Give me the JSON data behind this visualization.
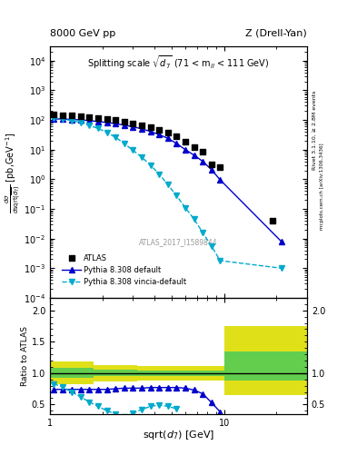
{
  "title_left": "8000 GeV pp",
  "title_right": "Z (Drell-Yan)",
  "right_label1": "Rivet 3.1.10, ≥ 2.8M events",
  "right_label2": "mcplots.cern.ch [arXiv:1306.3436]",
  "ref_label": "ATLAS_2017_I1589844",
  "atlas_x": [
    1.05,
    1.18,
    1.33,
    1.5,
    1.68,
    1.89,
    2.12,
    2.38,
    2.67,
    3.0,
    3.37,
    3.78,
    4.24,
    4.76,
    5.34,
    5.99,
    6.73,
    7.55,
    8.48,
    9.51,
    19.02
  ],
  "atlas_y": [
    150,
    145,
    140,
    135,
    128,
    118,
    108,
    100,
    88,
    78,
    68,
    58,
    47,
    37,
    28,
    18,
    12,
    8.5,
    3.2,
    2.5,
    0.04
  ],
  "pythia_default_x": [
    1.05,
    1.18,
    1.33,
    1.5,
    1.68,
    1.89,
    2.12,
    2.38,
    2.67,
    3.0,
    3.37,
    3.78,
    4.24,
    4.76,
    5.34,
    5.99,
    6.73,
    7.55,
    8.48,
    9.51,
    21.34
  ],
  "pythia_default_y": [
    108,
    108,
    104,
    100,
    95,
    88,
    82,
    75,
    67,
    59,
    50,
    41,
    32,
    24,
    16,
    10,
    6.5,
    4.0,
    2.1,
    0.95,
    0.008
  ],
  "pythia_vincia_x": [
    1.05,
    1.18,
    1.33,
    1.5,
    1.68,
    1.89,
    2.12,
    2.38,
    2.67,
    3.0,
    3.37,
    3.78,
    4.24,
    4.76,
    5.34,
    5.99,
    6.73,
    7.55,
    8.48,
    9.51,
    21.34
  ],
  "pythia_vincia_y": [
    118,
    108,
    95,
    82,
    65,
    52,
    38,
    26,
    16,
    9.5,
    5.5,
    3.0,
    1.5,
    0.65,
    0.28,
    0.11,
    0.045,
    0.016,
    0.0055,
    0.0018,
    0.001
  ],
  "ratio_pythia_default_x": [
    1.05,
    1.18,
    1.33,
    1.5,
    1.68,
    1.89,
    2.12,
    2.38,
    2.67,
    3.0,
    3.37,
    3.78,
    4.24,
    4.76,
    5.34,
    5.99,
    6.73,
    7.55,
    8.48,
    9.51
  ],
  "ratio_pythia_default_y": [
    0.74,
    0.74,
    0.74,
    0.74,
    0.74,
    0.74,
    0.74,
    0.75,
    0.76,
    0.76,
    0.76,
    0.77,
    0.77,
    0.77,
    0.77,
    0.76,
    0.73,
    0.67,
    0.53,
    0.38
  ],
  "ratio_pythia_vincia_x": [
    1.05,
    1.18,
    1.33,
    1.5,
    1.68,
    1.89,
    2.12,
    2.38,
    2.67,
    3.0,
    3.37,
    3.78,
    4.24,
    4.76,
    5.34
  ],
  "ratio_pythia_vincia_y": [
    0.83,
    0.78,
    0.7,
    0.62,
    0.54,
    0.47,
    0.4,
    0.35,
    0.3,
    0.36,
    0.42,
    0.47,
    0.49,
    0.47,
    0.43
  ],
  "band_x_edges": [
    1.0,
    1.78,
    3.16,
    5.62,
    10.0,
    30.0
  ],
  "band_yellow_lo": [
    0.82,
    0.87,
    0.88,
    0.88,
    0.65
  ],
  "band_yellow_hi": [
    1.18,
    1.13,
    1.12,
    1.12,
    1.75
  ],
  "band_green_lo": [
    0.92,
    0.95,
    0.96,
    0.96,
    0.88
  ],
  "band_green_hi": [
    1.08,
    1.05,
    1.04,
    1.04,
    1.35
  ],
  "color_atlas": "#000000",
  "color_pythia_default": "#0000cc",
  "color_pythia_vincia": "#00aacc",
  "color_green_band": "#55cc55",
  "color_yellow_band": "#dddd00",
  "xlim": [
    1.0,
    30.0
  ],
  "ylim_main": [
    0.0001,
    30000.0
  ],
  "ylim_ratio": [
    0.35,
    2.2
  ]
}
